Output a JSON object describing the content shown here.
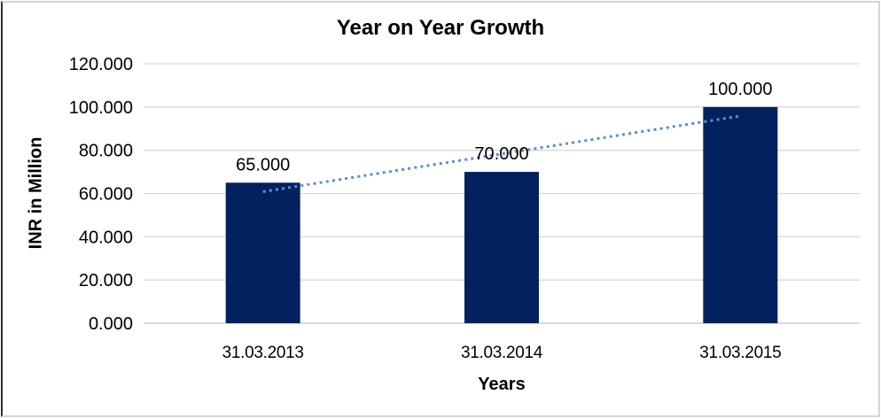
{
  "frame": {
    "border_color": "#d5d5d5",
    "left_border_color": "#2f2f2f"
  },
  "chart_data": {
    "type": "bar",
    "title": "Year on Year Growth",
    "xlabel": "Years",
    "ylabel": "INR in Million",
    "categories": [
      "31.03.2013",
      "31.03.2014",
      "31.03.2015"
    ],
    "values": [
      65,
      70,
      100
    ],
    "bar_labels": [
      "65.000",
      "70.000",
      "100.000"
    ],
    "y_tick_labels": [
      "0.000",
      "20.000",
      "40.000",
      "60.000",
      "80.000",
      "100.000",
      "120.000"
    ],
    "y_tick_values": [
      0,
      20,
      40,
      60,
      80,
      100,
      120
    ],
    "ylim": [
      0,
      120
    ],
    "grid": "horizontal",
    "legend_position": "none",
    "bar_color": "#03215F",
    "gridline_color": "#D9D9D9",
    "axis_line_color": "#C4C4C4",
    "text_color": "#000000",
    "trendline": {
      "type": "linear",
      "style": "dotted",
      "color": "#5B8FD0",
      "fitted_values": [
        60.833,
        78.333,
        95.833
      ]
    }
  }
}
